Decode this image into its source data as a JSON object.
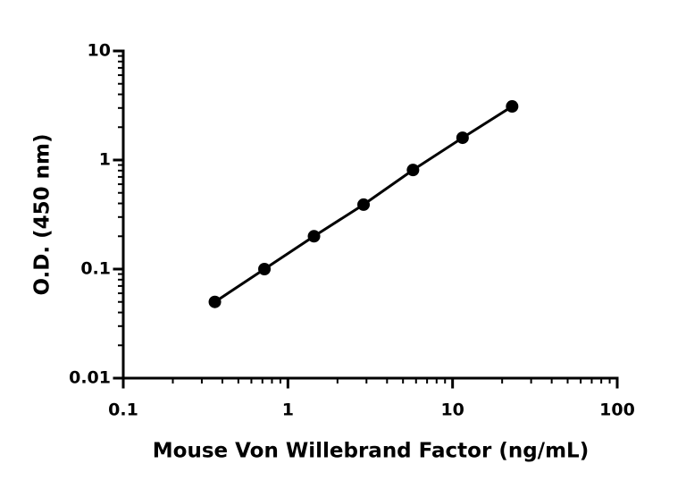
{
  "chart_data": {
    "type": "scatter",
    "x_label": "Mouse Von Willebrand Factor (ng/mL)",
    "y_label": "O.D. (450 nm)",
    "x": [
      0.36,
      0.72,
      1.44,
      2.88,
      5.75,
      11.5,
      23
    ],
    "series": [
      {
        "color": "#000000",
        "values": [
          0.05,
          0.1,
          0.2,
          0.39,
          0.81,
          1.6,
          3.1
        ]
      }
    ],
    "xlim": [
      0.1,
      100
    ],
    "ylim": [
      0.01,
      10
    ],
    "xticks": [
      0.1,
      1,
      10,
      100
    ],
    "yticks": [
      0.01,
      0.1,
      1,
      10
    ],
    "xlog": true,
    "ylog": true,
    "minor_ticks": true,
    "line": true
  }
}
